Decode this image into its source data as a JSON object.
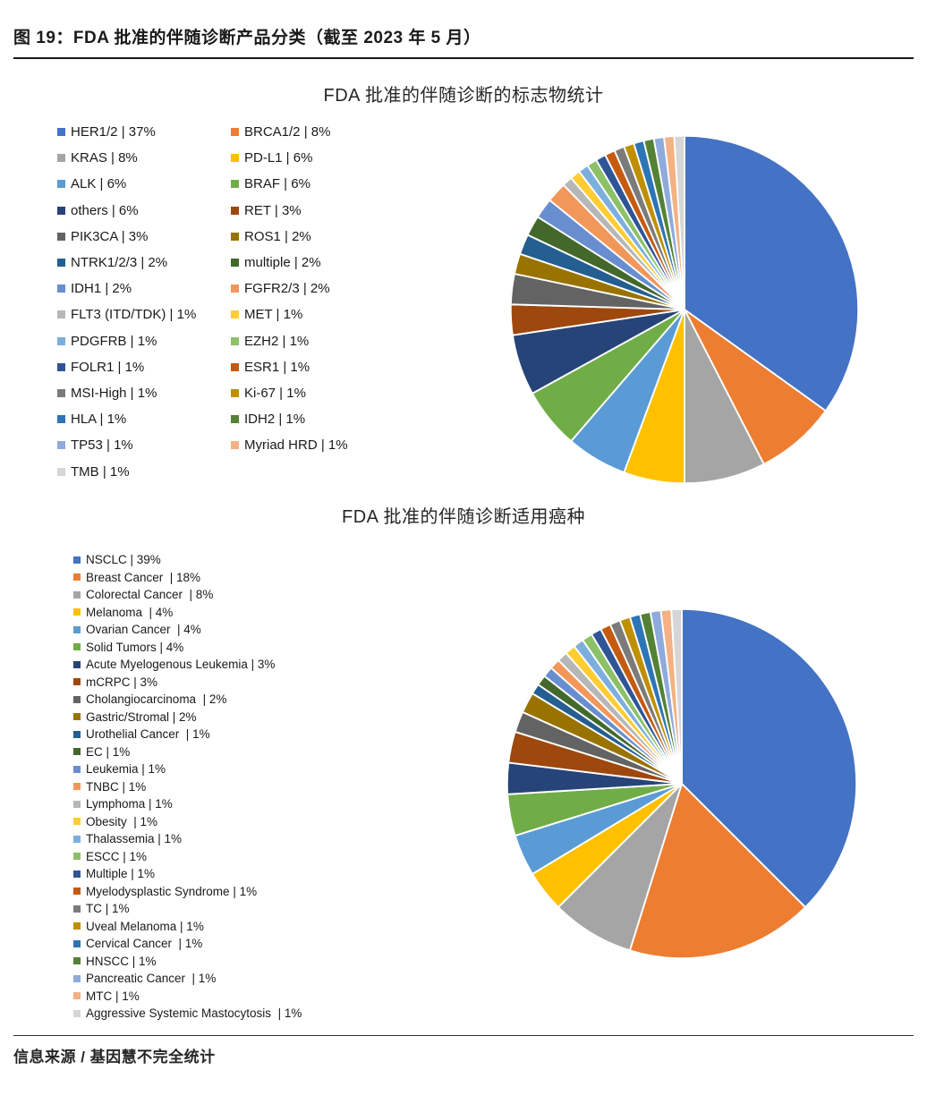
{
  "page": {
    "figure_title": "图 19：FDA 批准的伴随诊断产品分类（截至 2023 年 5 月）",
    "source_note": "信息来源 / 基因慧不完全统计"
  },
  "chart_data": [
    {
      "type": "pie",
      "title": "FDA 批准的伴随诊断的标志物统计",
      "legend_position": "left",
      "legend_columns": 2,
      "start_angle_deg": 0,
      "direction": "clockwise",
      "slice_border_color": "#ffffff",
      "items": [
        {
          "label": "HER1/2",
          "value": 37,
          "display": "HER1/2 | 37%",
          "color": "#4472C4"
        },
        {
          "label": "BRCA1/2",
          "value": 8,
          "display": "BRCA1/2 | 8%",
          "color": "#ED7D31"
        },
        {
          "label": "KRAS",
          "value": 8,
          "display": "KRAS | 8%",
          "color": "#A5A5A5"
        },
        {
          "label": "PD-L1",
          "value": 6,
          "display": "PD-L1 | 6%",
          "color": "#FFC000"
        },
        {
          "label": "ALK",
          "value": 6,
          "display": "ALK | 6%",
          "color": "#5B9BD5"
        },
        {
          "label": "BRAF",
          "value": 6,
          "display": "BRAF | 6%",
          "color": "#70AD47"
        },
        {
          "label": "others",
          "value": 6,
          "display": "others | 6%",
          "color": "#264478"
        },
        {
          "label": "RET",
          "value": 3,
          "display": "RET | 3%",
          "color": "#9E480E"
        },
        {
          "label": "PIK3CA",
          "value": 3,
          "display": "PIK3CA | 3%",
          "color": "#636363"
        },
        {
          "label": "ROS1",
          "value": 2,
          "display": "ROS1 | 2%",
          "color": "#997300"
        },
        {
          "label": "NTRK1/2/3",
          "value": 2,
          "display": "NTRK1/2/3 | 2%",
          "color": "#255E91"
        },
        {
          "label": "multiple",
          "value": 2,
          "display": "multiple | 2%",
          "color": "#43682B"
        },
        {
          "label": "IDH1",
          "value": 2,
          "display": "IDH1 | 2%",
          "color": "#698ED0"
        },
        {
          "label": "FGFR2/3",
          "value": 2,
          "display": "FGFR2/3 | 2%",
          "color": "#F1975A"
        },
        {
          "label": "FLT3 (ITD/TDK)",
          "value": 1,
          "display": "FLT3 (ITD/TDK) | 1%",
          "color": "#B7B7B7"
        },
        {
          "label": "MET",
          "value": 1,
          "display": "MET | 1%",
          "color": "#FFCD33"
        },
        {
          "label": "PDGFRB",
          "value": 1,
          "display": "PDGFRB | 1%",
          "color": "#7CAFDD"
        },
        {
          "label": "EZH2",
          "value": 1,
          "display": "EZH2 | 1%",
          "color": "#8CC168"
        },
        {
          "label": "FOLR1",
          "value": 1,
          "display": "FOLR1 | 1%",
          "color": "#2F5597"
        },
        {
          "label": "ESR1",
          "value": 1,
          "display": "ESR1 | 1%",
          "color": "#C55A11"
        },
        {
          "label": "MSI-High",
          "value": 1,
          "display": "MSI-High | 1%",
          "color": "#7B7B7B"
        },
        {
          "label": "Ki-67",
          "value": 1,
          "display": "Ki-67 | 1%",
          "color": "#BF8F00"
        },
        {
          "label": "HLA",
          "value": 1,
          "display": "HLA | 1%",
          "color": "#2E75B6"
        },
        {
          "label": "IDH2",
          "value": 1,
          "display": "IDH2 | 1%",
          "color": "#548235"
        },
        {
          "label": "TP53",
          "value": 1,
          "display": "TP53 | 1%",
          "color": "#8FAADC"
        },
        {
          "label": "Myriad HRD",
          "value": 1,
          "display": "Myriad HRD | 1%",
          "color": "#F4B183"
        },
        {
          "label": "TMB",
          "value": 1,
          "display": "TMB | 1%",
          "color": "#D6D6D6"
        }
      ]
    },
    {
      "type": "pie",
      "title": "FDA 批准的伴随诊断适用癌种",
      "legend_position": "left",
      "legend_columns": 1,
      "start_angle_deg": 0,
      "direction": "clockwise",
      "slice_border_color": "#ffffff",
      "items": [
        {
          "label": "NSCLC",
          "value": 39,
          "display": "NSCLC | 39%",
          "color": "#4472C4"
        },
        {
          "label": "Breast Cancer",
          "value": 18,
          "display": "Breast Cancer  | 18%",
          "color": "#ED7D31"
        },
        {
          "label": "Colorectal Cancer",
          "value": 8,
          "display": "Colorectal Cancer  | 8%",
          "color": "#A5A5A5"
        },
        {
          "label": "Melanoma",
          "value": 4,
          "display": "Melanoma  | 4%",
          "color": "#FFC000"
        },
        {
          "label": "Ovarian Cancer",
          "value": 4,
          "display": "Ovarian Cancer  | 4%",
          "color": "#5B9BD5"
        },
        {
          "label": "Solid Tumors",
          "value": 4,
          "display": "Solid Tumors | 4%",
          "color": "#70AD47"
        },
        {
          "label": "Acute Myelogenous Leukemia",
          "value": 3,
          "display": "Acute Myelogenous Leukemia | 3%",
          "color": "#264478"
        },
        {
          "label": "mCRPC",
          "value": 3,
          "display": "mCRPC | 3%",
          "color": "#9E480E"
        },
        {
          "label": "Cholangiocarcinoma",
          "value": 2,
          "display": "Cholangiocarcinoma  | 2%",
          "color": "#636363"
        },
        {
          "label": "Gastric/Stromal",
          "value": 2,
          "display": "Gastric/Stromal | 2%",
          "color": "#997300"
        },
        {
          "label": "Urothelial Cancer",
          "value": 1,
          "display": "Urothelial Cancer  | 1%",
          "color": "#255E91"
        },
        {
          "label": "EC",
          "value": 1,
          "display": "EC | 1%",
          "color": "#43682B"
        },
        {
          "label": "Leukemia",
          "value": 1,
          "display": "Leukemia | 1%",
          "color": "#698ED0"
        },
        {
          "label": "TNBC",
          "value": 1,
          "display": "TNBC | 1%",
          "color": "#F1975A"
        },
        {
          "label": "Lymphoma",
          "value": 1,
          "display": "Lymphoma | 1%",
          "color": "#B7B7B7"
        },
        {
          "label": "Obesity",
          "value": 1,
          "display": "Obesity  | 1%",
          "color": "#FFCD33"
        },
        {
          "label": "Thalassemia",
          "value": 1,
          "display": "Thalassemia | 1%",
          "color": "#7CAFDD"
        },
        {
          "label": "ESCC",
          "value": 1,
          "display": "ESCC | 1%",
          "color": "#8CC168"
        },
        {
          "label": "Multiple",
          "value": 1,
          "display": "Multiple | 1%",
          "color": "#2F5597"
        },
        {
          "label": "Myelodysplastic Syndrome",
          "value": 1,
          "display": "Myelodysplastic Syndrome | 1%",
          "color": "#C55A11"
        },
        {
          "label": "TC",
          "value": 1,
          "display": "TC | 1%",
          "color": "#7B7B7B"
        },
        {
          "label": "Uveal Melanoma",
          "value": 1,
          "display": "Uveal Melanoma | 1%",
          "color": "#BF8F00"
        },
        {
          "label": "Cervical Cancer",
          "value": 1,
          "display": "Cervical Cancer  | 1%",
          "color": "#2E75B6"
        },
        {
          "label": "HNSCC",
          "value": 1,
          "display": "HNSCC | 1%",
          "color": "#548235"
        },
        {
          "label": "Pancreatic Cancer",
          "value": 1,
          "display": "Pancreatic Cancer  | 1%",
          "color": "#8FAADC"
        },
        {
          "label": "MTC",
          "value": 1,
          "display": "MTC | 1%",
          "color": "#F4B183"
        },
        {
          "label": "Aggressive Systemic Mastocytosis",
          "value": 1,
          "display": "Aggressive Systemic Mastocytosis  | 1%",
          "color": "#D6D6D6"
        }
      ]
    }
  ]
}
